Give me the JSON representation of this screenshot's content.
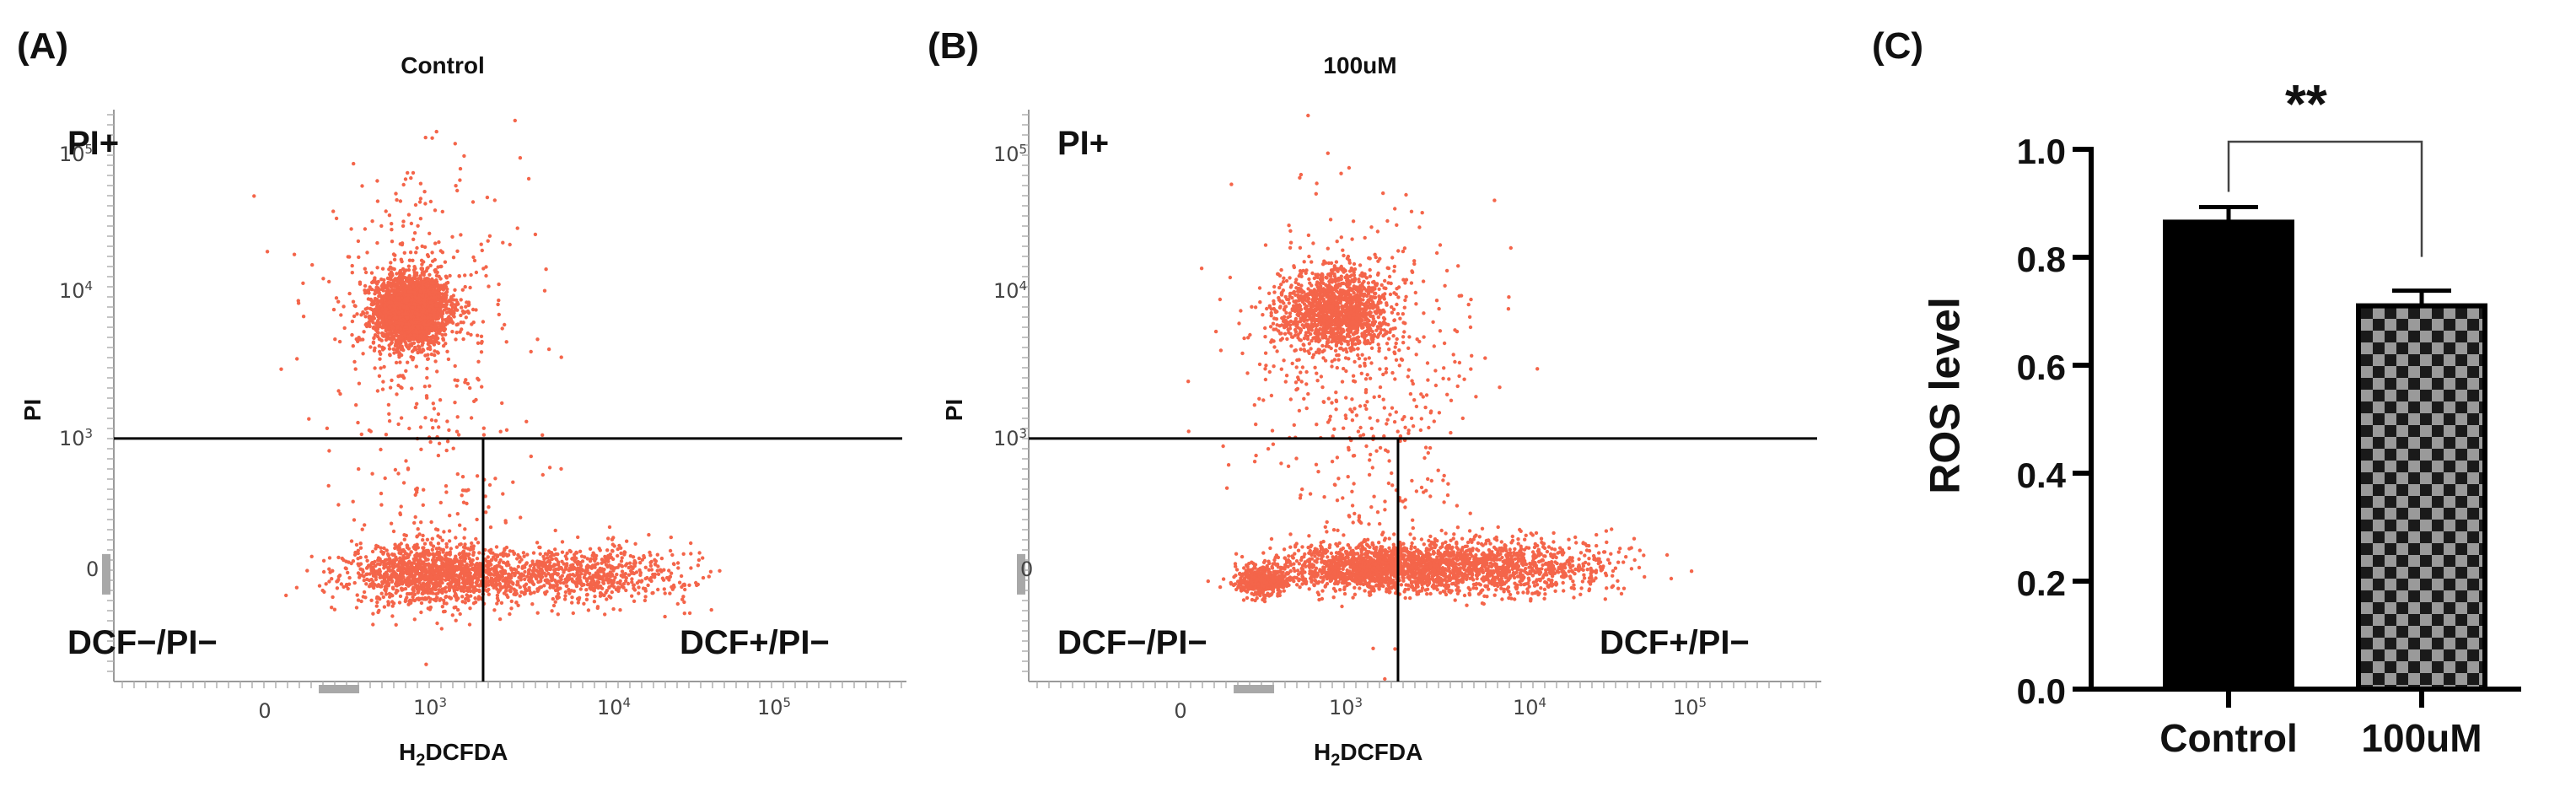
{
  "chart_data": [
    {
      "type": "scatter",
      "panel_label": "(A)",
      "title": "Control",
      "xlabel_main": "H",
      "xlabel_sub": "2",
      "xlabel_rest": "DCFDA",
      "ylabel": "PI",
      "x_ticks": [
        {
          "label": "0",
          "exp": ""
        },
        {
          "label": "10",
          "exp": "3"
        },
        {
          "label": "10",
          "exp": "4"
        },
        {
          "label": "10",
          "exp": "5"
        }
      ],
      "y_ticks": [
        {
          "label": "10",
          "exp": "5"
        },
        {
          "label": "10",
          "exp": "4"
        },
        {
          "label": "10",
          "exp": "3"
        },
        {
          "label": "0",
          "exp": ""
        }
      ],
      "quadrants": {
        "upper": "PI+",
        "lower_left": "DCF−/PI−",
        "lower_right": "DCF+/PI−"
      },
      "point_color": "#f4654a",
      "populations": [
        {
          "cx": 0.35,
          "cy": 3.85,
          "sx": 0.1,
          "sy": 0.12,
          "n": 2600
        },
        {
          "cx": 0.38,
          "cy": 3.9,
          "sx": 0.3,
          "sy": 0.45,
          "n": 350
        },
        {
          "cx": 0.45,
          "cy": 2.0,
          "sx": 0.22,
          "sy": 0.1,
          "n": 1200
        },
        {
          "cx": 1.2,
          "cy": 2.0,
          "sx": 0.35,
          "sy": 0.1,
          "n": 900
        },
        {
          "cx": 0.5,
          "cy": 2.6,
          "sx": 0.25,
          "sy": 0.5,
          "n": 150
        }
      ]
    },
    {
      "type": "scatter",
      "panel_label": "(B)",
      "title": "100uM",
      "xlabel_main": "H",
      "xlabel_sub": "2",
      "xlabel_rest": "DCFDA",
      "ylabel": "PI",
      "x_ticks": [
        {
          "label": "0",
          "exp": ""
        },
        {
          "label": "10",
          "exp": "3"
        },
        {
          "label": "10",
          "exp": "4"
        },
        {
          "label": "10",
          "exp": "5"
        }
      ],
      "y_ticks": [
        {
          "label": "10",
          "exp": "5"
        },
        {
          "label": "10",
          "exp": "4"
        },
        {
          "label": "10",
          "exp": "3"
        },
        {
          "label": "0",
          "exp": ""
        }
      ],
      "quadrants": {
        "upper": "PI+",
        "lower_left": "DCF−/PI−",
        "lower_right": "DCF+/PI−"
      },
      "point_color": "#f4654a",
      "populations": [
        {
          "cx": 0.4,
          "cy": 3.85,
          "sx": 0.15,
          "sy": 0.14,
          "n": 1400
        },
        {
          "cx": 0.5,
          "cy": 3.7,
          "sx": 0.35,
          "sy": 0.5,
          "n": 350
        },
        {
          "cx": 0.0,
          "cy": 1.95,
          "sx": 0.07,
          "sy": 0.05,
          "n": 500
        },
        {
          "cx": 0.6,
          "cy": 2.05,
          "sx": 0.25,
          "sy": 0.08,
          "n": 1300
        },
        {
          "cx": 1.25,
          "cy": 2.05,
          "sx": 0.35,
          "sy": 0.1,
          "n": 1200
        },
        {
          "cx": 0.6,
          "cy": 2.6,
          "sx": 0.25,
          "sy": 0.5,
          "n": 180
        }
      ]
    },
    {
      "type": "bar",
      "panel_label": "(C)",
      "title": "",
      "categories": [
        "Control",
        "100uM"
      ],
      "values": [
        0.865,
        0.71
      ],
      "errors": [
        0.028,
        0.028
      ],
      "ylabel": "ROS level",
      "ylim": [
        0.0,
        1.0
      ],
      "y_ticks": [
        "0.0",
        "0.2",
        "0.4",
        "0.6",
        "0.8",
        "1.0"
      ],
      "significance": "**",
      "bar_fills": [
        "solid-black",
        "black-gray-checker"
      ]
    }
  ]
}
